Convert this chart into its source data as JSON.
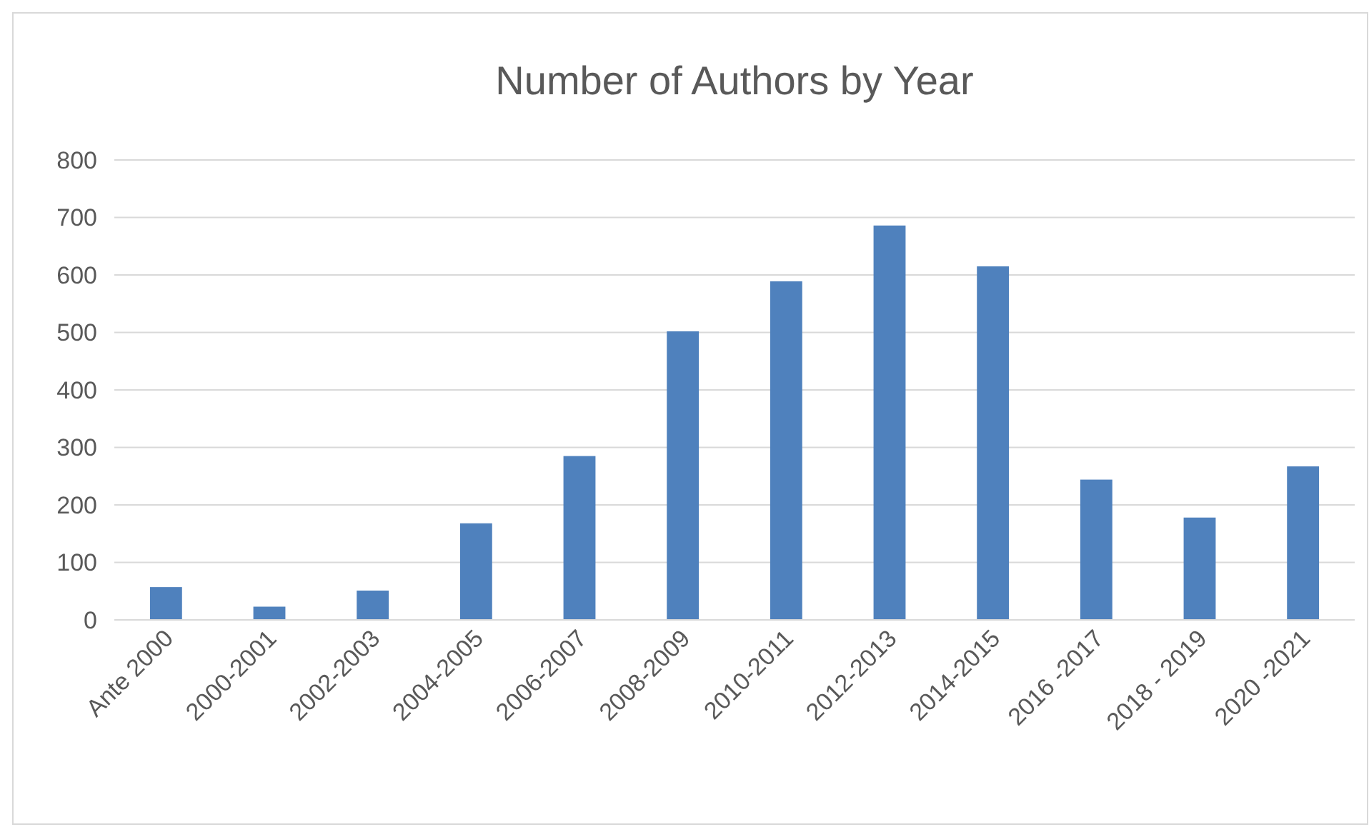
{
  "chart_data": {
    "type": "bar",
    "title": "Number of Authors by Year",
    "categories": [
      "Ante 2000",
      "2000-2001",
      "2002-2003",
      "2004-2005",
      "2006-2007",
      "2008-2009",
      "2010-2011",
      "2012-2013",
      "2014-2015",
      "2016 -2017",
      "2018 - 2019",
      "2020 -2021"
    ],
    "values": [
      57,
      23,
      51,
      168,
      285,
      502,
      589,
      686,
      615,
      244,
      178,
      267
    ],
    "color": "#4f81bd",
    "ylim": [
      0,
      800
    ],
    "yticks": [
      0,
      100,
      200,
      300,
      400,
      500,
      600,
      700,
      800
    ],
    "grid": "y"
  }
}
